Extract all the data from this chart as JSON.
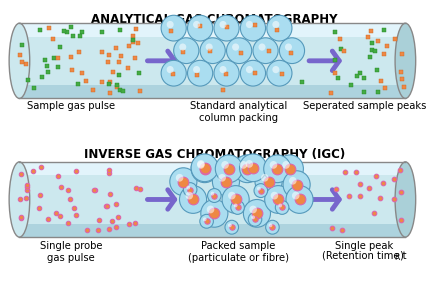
{
  "title1": "ANALYTICAL GAS CHROMATOGRAPHY",
  "title2": "INVERSE GAS CHROMATOGRAPHY (IGC)",
  "label1a": "Sample gas pulse",
  "label1b": "Standard analytical\ncolumn packing",
  "label1c": "Seperated sample peaks",
  "label2a": "Single probe\ngas pulse",
  "label2b": "Packed sample\n(particulate or fibre)",
  "label2c_part1": "Single peak",
  "label2c_part2": "(Retention time t",
  "label2c_sub": "R",
  "label2c_end": ")",
  "bg_color": "#ffffff",
  "tube_fill": "#cce8ee",
  "tube_edge": "#888888",
  "ball_color": "#aaddf0",
  "ball_edge": "#5599bb",
  "arrow_color": "#7766cc",
  "dot_orange": "#ee8844",
  "dot_green": "#44aa44",
  "dot_pink": "#dd66aa"
}
